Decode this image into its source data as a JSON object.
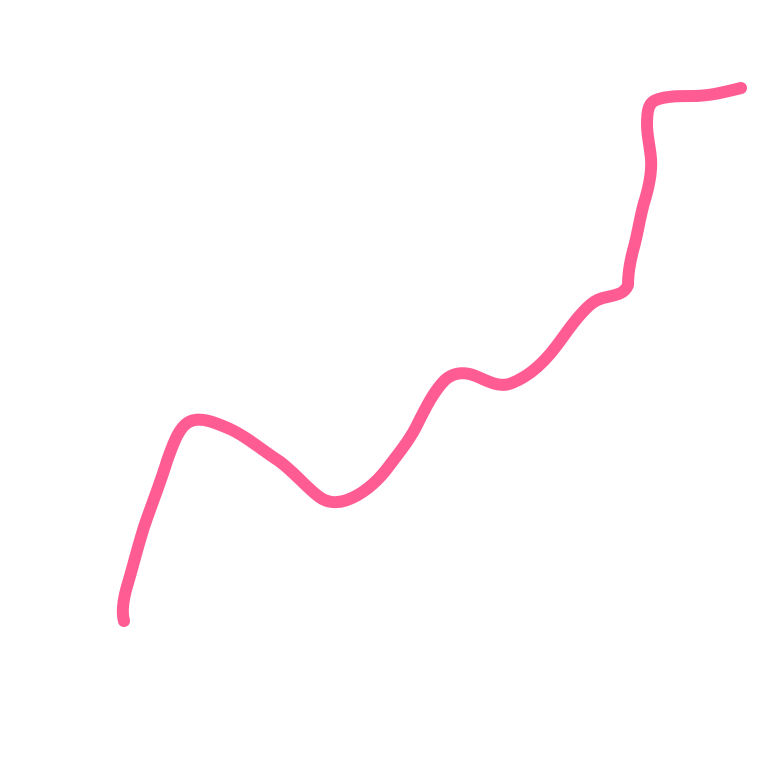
{
  "canvas": {
    "background": "#ffffff"
  },
  "stroke": {
    "color": "#ff5c93",
    "shape": "freehand-pen-stroke"
  }
}
